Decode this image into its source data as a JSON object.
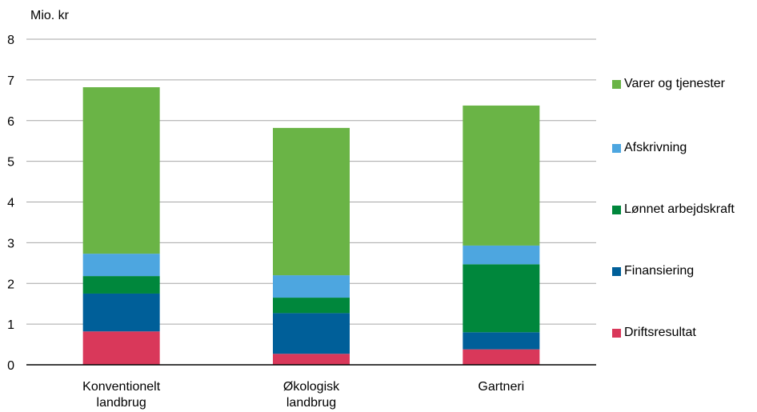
{
  "chart_data": {
    "type": "bar",
    "stacked": true,
    "ylabel": "Mio. kr",
    "ylim": [
      0,
      8
    ],
    "yticks": [
      0,
      1,
      2,
      3,
      4,
      5,
      6,
      7,
      8
    ],
    "grid": true,
    "legend_position": "right",
    "categories": [
      "Konventionelt\nlandbrug",
      "Økologisk\nlandbrug",
      "Gartneri"
    ],
    "series": [
      {
        "name": "Driftsresultat",
        "color": "#d9385a",
        "values": [
          0.82,
          0.27,
          0.38
        ]
      },
      {
        "name": "Finansiering",
        "color": "#005f99",
        "values": [
          0.93,
          1.0,
          0.42
        ]
      },
      {
        "name": "Lønnet arbejdskraft",
        "color": "#00873c",
        "values": [
          0.43,
          0.38,
          1.67
        ]
      },
      {
        "name": "Afskrivning",
        "color": "#4da6e0",
        "values": [
          0.55,
          0.55,
          0.46
        ]
      },
      {
        "name": "Varer og tjenester",
        "color": "#6ab446",
        "values": [
          4.09,
          3.62,
          3.44
        ]
      }
    ]
  }
}
